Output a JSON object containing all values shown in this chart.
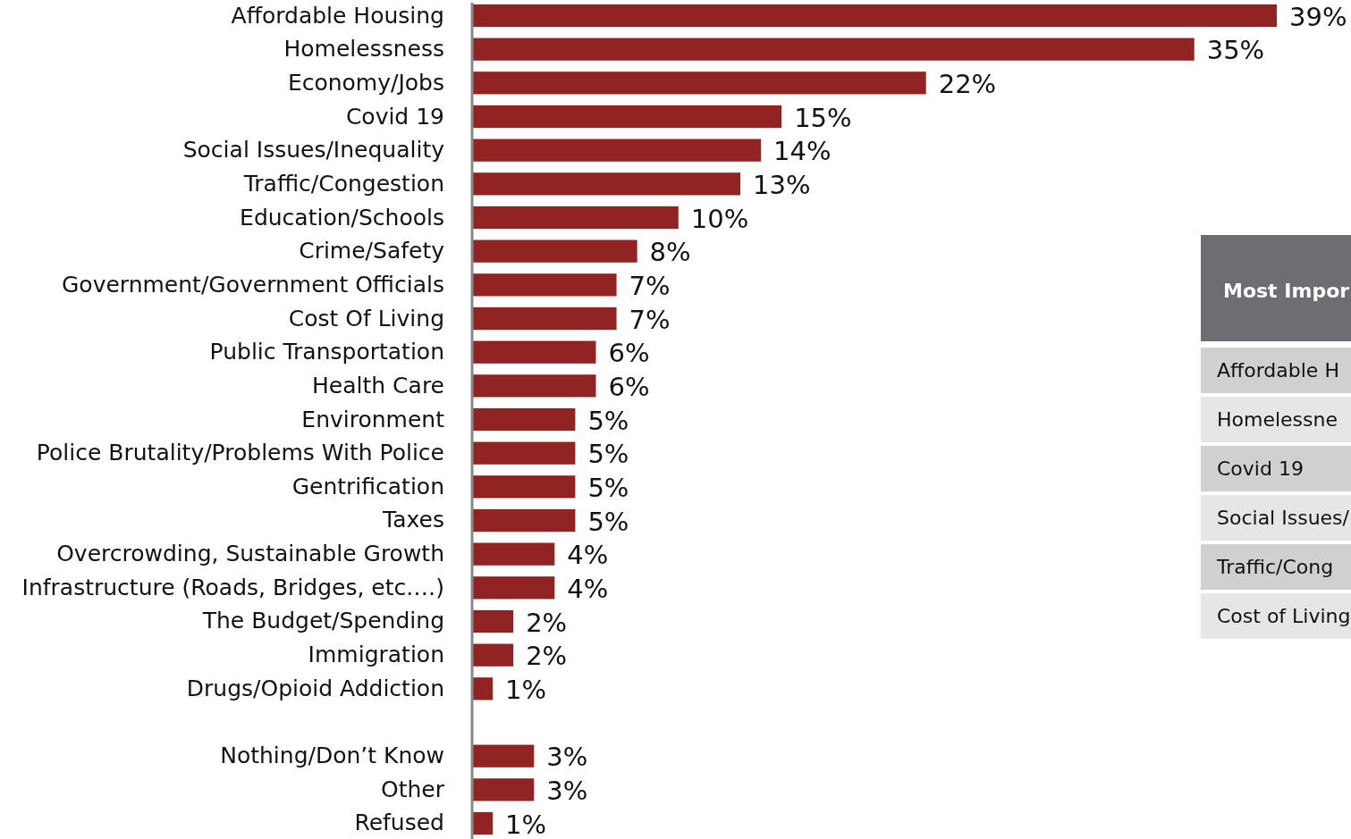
{
  "chart_data": {
    "type": "bar",
    "orientation": "horizontal",
    "categories": [
      "Affordable Housing",
      "Homelessness",
      "Economy/Jobs",
      "Covid 19",
      "Social Issues/Inequality",
      "Traffic/Congestion",
      "Education/Schools",
      "Crime/Safety",
      "Government/Government Officials",
      "Cost Of Living",
      "Public Transportation",
      "Health Care",
      "Environment",
      "Police Brutality/Problems With Police",
      "Gentrification",
      "Taxes",
      "Overcrowding, Sustainable Growth",
      "Infrastructure (Roads, Bridges, etc.…)",
      "The Budget/Spending",
      "Immigration",
      "Drugs/Opioid Addiction",
      null,
      "Nothing/Don’t Know",
      "Other",
      "Refused"
    ],
    "values": [
      39,
      35,
      22,
      15,
      14,
      13,
      10,
      8,
      7,
      7,
      6,
      6,
      5,
      5,
      5,
      5,
      4,
      4,
      2,
      2,
      1,
      null,
      3,
      3,
      1
    ],
    "value_labels": [
      "39%",
      "35%",
      "22%",
      "15%",
      "14%",
      "13%",
      "10%",
      "8%",
      "7%",
      "7%",
      "6%",
      "6%",
      "5%",
      "5%",
      "5%",
      "5%",
      "4%",
      "4%",
      "2%",
      "2%",
      "1%",
      null,
      "3%",
      "3%",
      "1%"
    ],
    "color": "#922323",
    "annotations": [
      "Most Impor",
      "Affordable H",
      "Homelessne",
      "Covid 19",
      "Social Issues/",
      "Traffic/Cong",
      "Cost of Living"
    ]
  }
}
